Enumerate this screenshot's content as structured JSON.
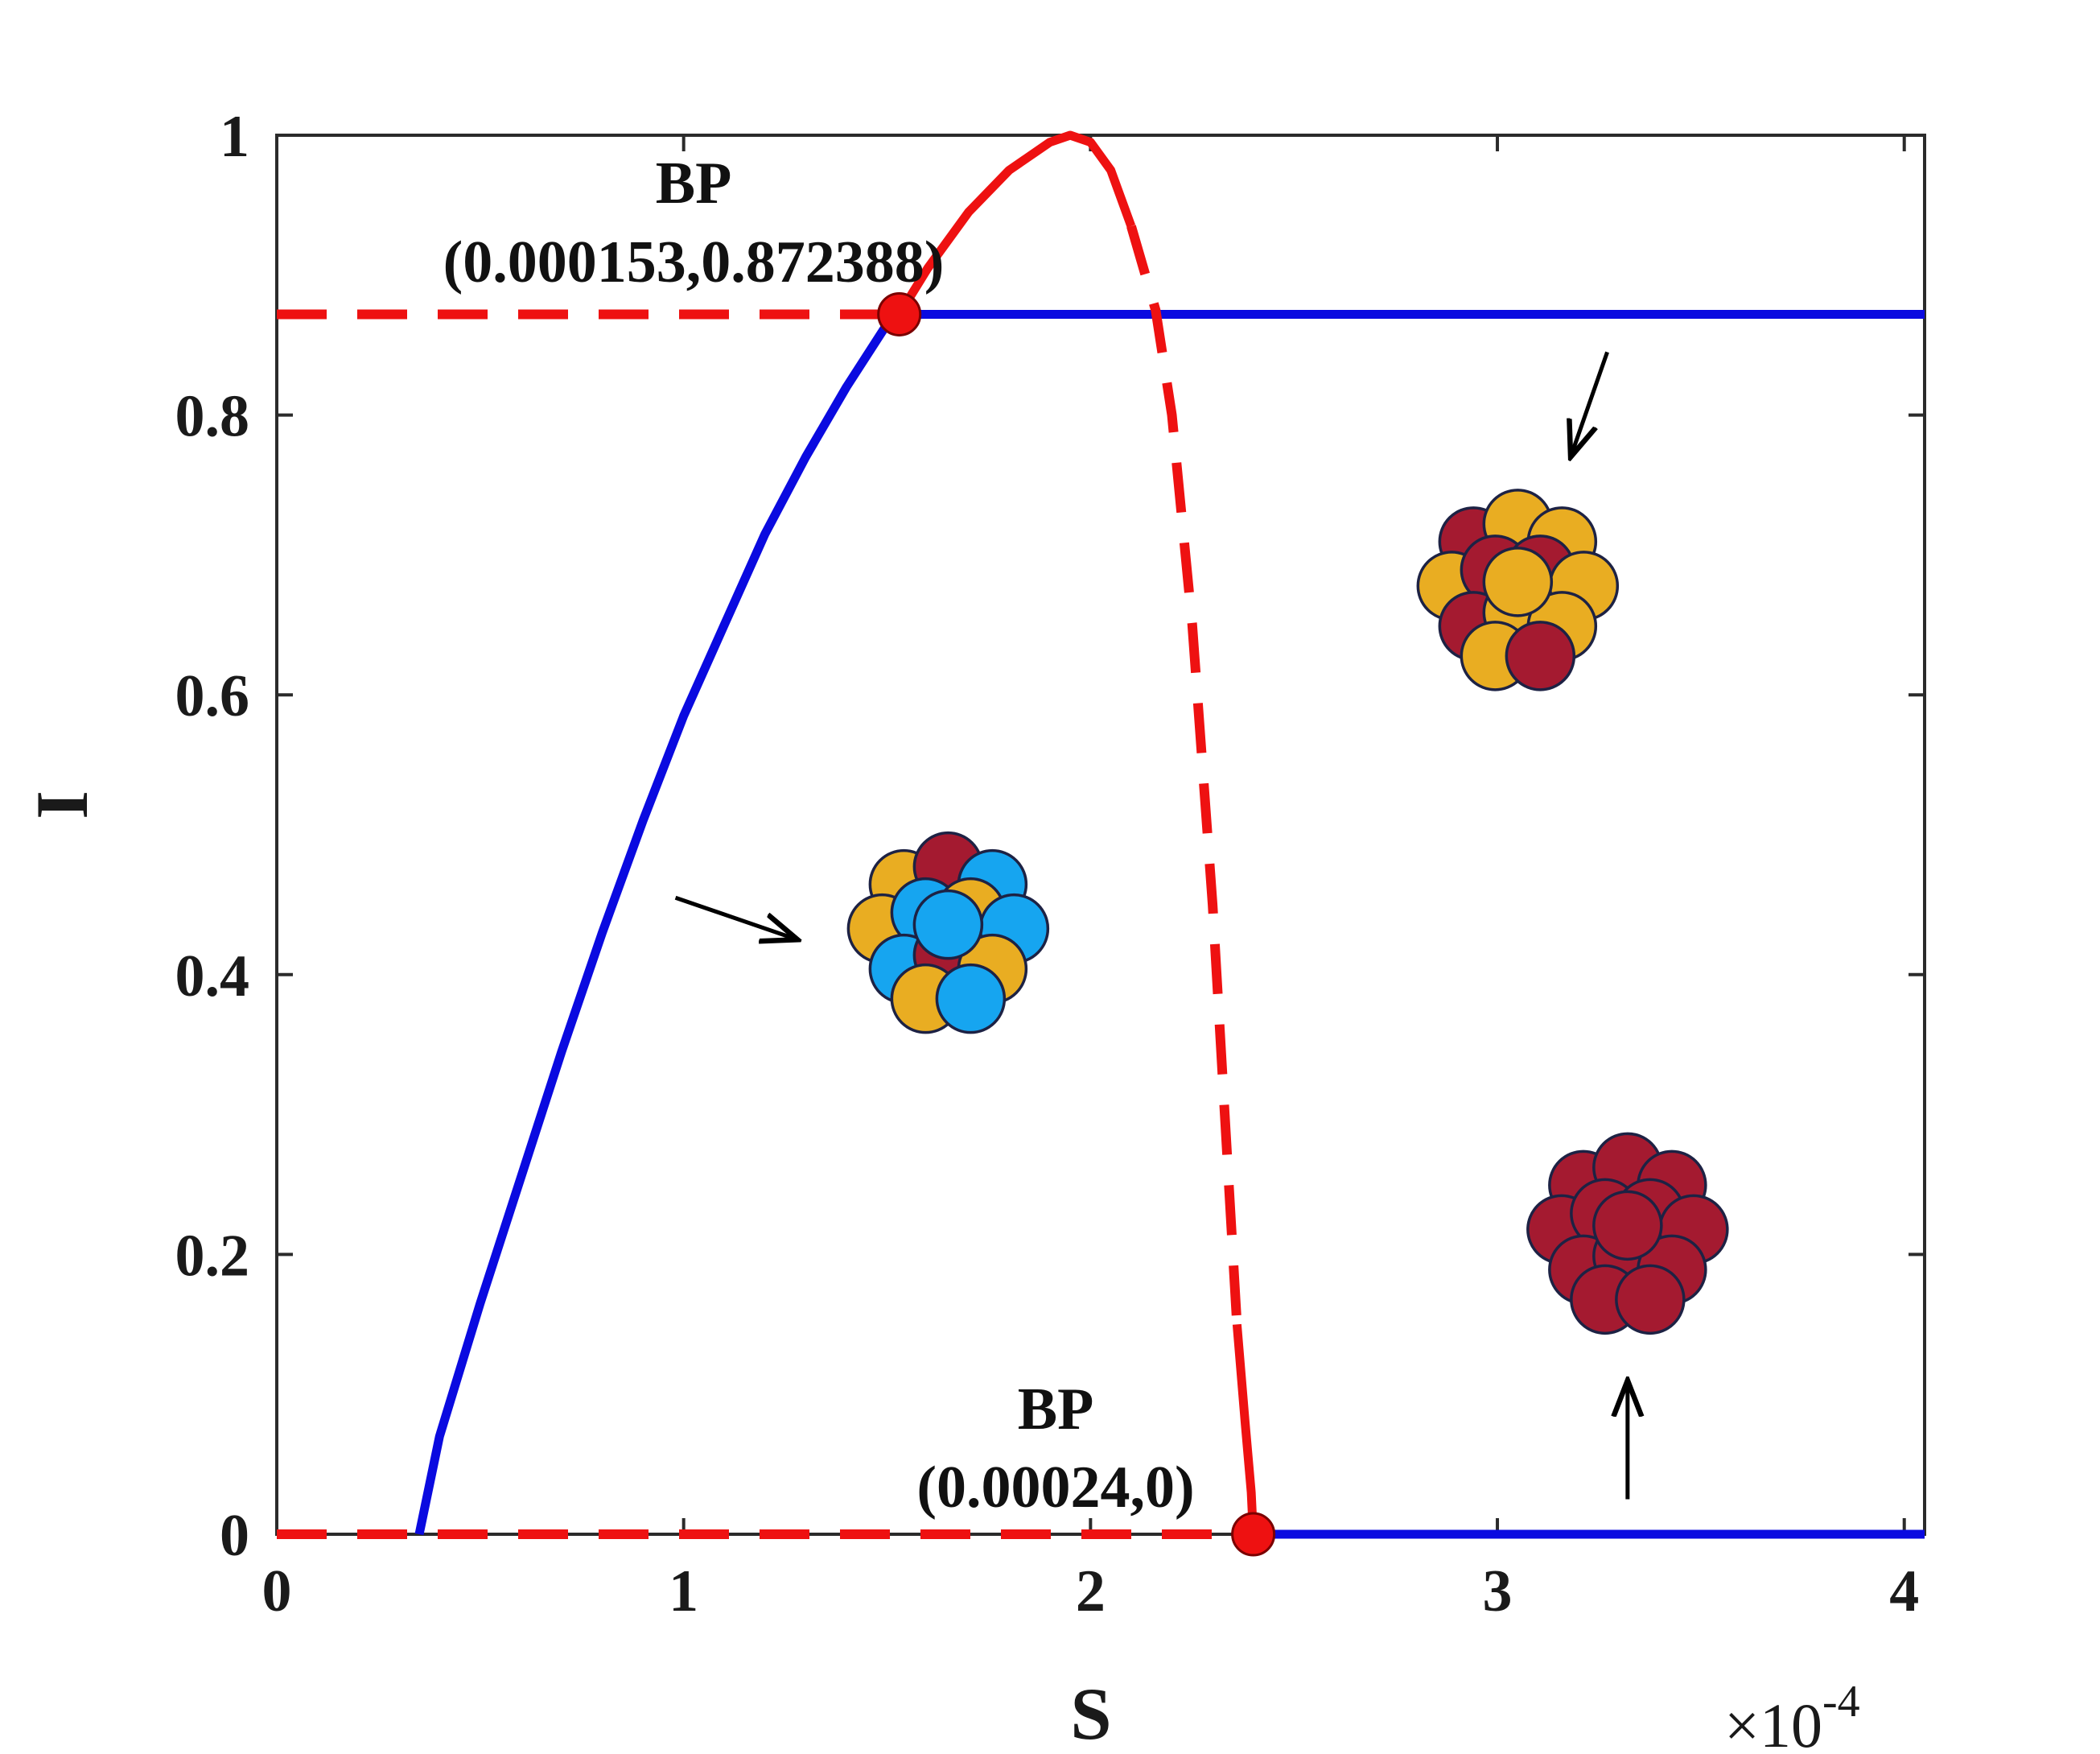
{
  "chart_data": {
    "type": "line",
    "xlabel": "S",
    "ylabel": "I",
    "x_scale_exponent_label": "×10",
    "x_scale_exponent": "-4",
    "xlim": [
      0,
      4.05
    ],
    "ylim": [
      0,
      1
    ],
    "x_ticks": [
      0,
      1,
      2,
      3,
      4
    ],
    "x_tick_labels": [
      "0",
      "1",
      "2",
      "3",
      "4"
    ],
    "y_ticks": [
      0,
      0.2,
      0.4,
      0.6,
      0.8,
      1
    ],
    "y_tick_labels": [
      "0",
      "0.2",
      "0.4",
      "0.6",
      "0.8",
      "1"
    ],
    "grid": false,
    "colors": {
      "stable": "#0a0ae0",
      "unstable": "#ee1111",
      "point": "#ee1111"
    },
    "series": [
      {
        "style": "solid",
        "color": "#0a0ae0",
        "x": [
          0.35,
          0.4,
          0.5,
          0.6,
          0.7,
          0.8,
          0.9,
          1.0,
          1.1,
          1.2,
          1.3,
          1.4,
          1.5,
          1.53
        ],
        "y": [
          0.0,
          0.07,
          0.165,
          0.255,
          0.345,
          0.43,
          0.51,
          0.585,
          0.65,
          0.715,
          0.77,
          0.82,
          0.865,
          0.872
        ]
      },
      {
        "style": "solid",
        "color": "#0a0ae0",
        "x": [
          1.53,
          4.05
        ],
        "y": [
          0.872,
          0.872
        ]
      },
      {
        "style": "solid",
        "color": "#0a0ae0",
        "x": [
          2.4,
          4.05
        ],
        "y": [
          0.0,
          0.0
        ]
      },
      {
        "style": "dashed",
        "color": "#ee1111",
        "x": [
          0.0,
          1.53
        ],
        "y": [
          0.872,
          0.872
        ]
      },
      {
        "style": "dashed",
        "color": "#ee1111",
        "x": [
          0.0,
          2.4
        ],
        "y": [
          0.0,
          0.0
        ]
      },
      {
        "style": "solid",
        "color": "#ee1111",
        "x": [
          1.53,
          1.6,
          1.7,
          1.8,
          1.9,
          1.95,
          2.0,
          2.05,
          2.1
        ],
        "y": [
          0.872,
          0.905,
          0.945,
          0.975,
          0.995,
          1.0,
          0.995,
          0.975,
          0.935
        ]
      },
      {
        "style": "dashed",
        "color": "#ee1111",
        "x": [
          2.1,
          2.16,
          2.2,
          2.25,
          2.3,
          2.33,
          2.36
        ],
        "y": [
          0.935,
          0.875,
          0.8,
          0.65,
          0.45,
          0.3,
          0.15
        ]
      },
      {
        "style": "solid",
        "color": "#ee1111",
        "x": [
          2.36,
          2.38,
          2.395,
          2.4
        ],
        "y": [
          0.15,
          0.08,
          0.03,
          0.0
        ]
      }
    ],
    "points": [
      {
        "x": 1.53,
        "y": 0.872,
        "label_line1": "BP",
        "label_line2": "(0.000153,0.872388)"
      },
      {
        "x": 2.4,
        "y": 0.0,
        "label_line1": "BP",
        "label_line2": "(0.00024,0)"
      }
    ],
    "illustrations": [
      {
        "name": "mixed-three-color-cluster",
        "x": 1.65,
        "y": 0.43,
        "arrow_from": [
          0.98,
          0.455
        ],
        "arrow_to": [
          1.28,
          0.425
        ]
      },
      {
        "name": "mixed-two-color-cluster",
        "x": 3.05,
        "y": 0.675,
        "arrow_from": [
          3.27,
          0.845
        ],
        "arrow_to": [
          3.18,
          0.77
        ]
      },
      {
        "name": "single-color-cluster",
        "x": 3.32,
        "y": 0.215,
        "arrow_from": [
          3.32,
          0.025
        ],
        "arrow_to": [
          3.32,
          0.11
        ]
      }
    ],
    "cluster_colors": {
      "maroon": "#a41a30",
      "gold": "#e9ad22",
      "blue": "#16a5f0",
      "outline": "#1d2244"
    }
  }
}
